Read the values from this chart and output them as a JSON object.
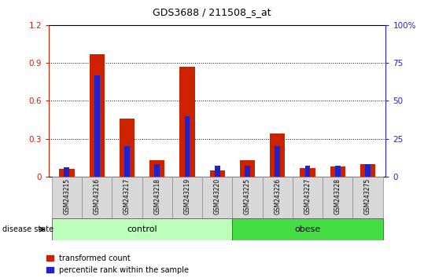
{
  "title": "GDS3688 / 211508_s_at",
  "samples": [
    "GSM243215",
    "GSM243216",
    "GSM243217",
    "GSM243218",
    "GSM243219",
    "GSM243220",
    "GSM243225",
    "GSM243226",
    "GSM243227",
    "GSM243228",
    "GSM243275"
  ],
  "transformed_count": [
    0.06,
    0.97,
    0.46,
    0.13,
    0.87,
    0.05,
    0.13,
    0.34,
    0.07,
    0.08,
    0.1
  ],
  "percentile_rank_pct": [
    6,
    67,
    20,
    8,
    40,
    7,
    7,
    20,
    7,
    7,
    8
  ],
  "red_color": "#cc2200",
  "blue_color": "#2222cc",
  "ylim_left": [
    0,
    1.2
  ],
  "ylim_right": [
    0,
    100
  ],
  "yticks_left": [
    0,
    0.3,
    0.6,
    0.9,
    1.2
  ],
  "yticks_right": [
    0,
    25,
    50,
    75,
    100
  ],
  "ytick_labels_left": [
    "0",
    "0.3",
    "0.6",
    "0.9",
    "1.2"
  ],
  "ytick_labels_right": [
    "0",
    "25",
    "50",
    "75",
    "100%"
  ],
  "groups": [
    {
      "label": "control",
      "indices": [
        0,
        1,
        2,
        3,
        4,
        5
      ],
      "color": "#bbffbb"
    },
    {
      "label": "obese",
      "indices": [
        6,
        7,
        8,
        9,
        10
      ],
      "color": "#44dd44"
    }
  ],
  "disease_state_label": "disease state",
  "legend_items": [
    {
      "label": "transformed count",
      "color": "#cc2200"
    },
    {
      "label": "percentile rank within the sample",
      "color": "#2222cc"
    }
  ],
  "bar_width": 0.5,
  "blue_bar_width": 0.18,
  "tick_label_color_left": "#cc2200",
  "tick_label_color_right": "#2222cc"
}
